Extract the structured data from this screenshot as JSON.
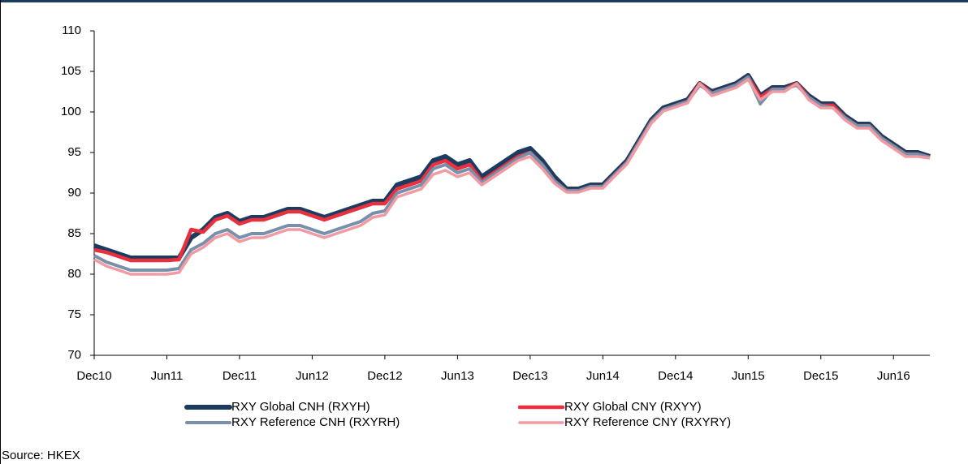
{
  "chart_data": {
    "type": "line",
    "categories": [
      "Dec10",
      null,
      null,
      null,
      null,
      null,
      "Jun11",
      null,
      null,
      null,
      null,
      null,
      "Dec11",
      null,
      null,
      null,
      null,
      null,
      "Jun12",
      null,
      null,
      null,
      null,
      null,
      "Dec12",
      null,
      null,
      null,
      null,
      null,
      "Jun13",
      null,
      null,
      null,
      null,
      null,
      "Dec13",
      null,
      null,
      null,
      null,
      null,
      "Jun14",
      null,
      null,
      null,
      null,
      null,
      "Dec14",
      null,
      null,
      null,
      null,
      null,
      "Jun15",
      null,
      null,
      null,
      null,
      null,
      "Dec15",
      null,
      null,
      null,
      null,
      null,
      "Jun16",
      null,
      null,
      null
    ],
    "series": [
      {
        "name": "RXY Global CNH (RXYH)",
        "color": "#1b3b5f",
        "values": [
          83.5,
          83,
          82.5,
          82,
          82,
          82,
          82,
          82,
          84.5,
          85.5,
          87,
          87.5,
          86.5,
          87,
          87,
          87.5,
          88,
          88,
          87.5,
          87,
          87.5,
          88,
          88.5,
          89,
          89,
          91,
          91.5,
          92,
          94,
          94.5,
          93.5,
          94,
          92,
          93,
          94,
          95,
          95.5,
          94,
          92,
          90.5,
          90.5,
          91,
          91,
          92.5,
          94,
          96.5,
          99,
          100.5,
          101,
          101.5,
          103.5,
          102.5,
          103,
          103.5,
          104.5,
          102,
          103,
          103,
          103.5,
          102,
          101,
          101,
          99.5,
          98.5,
          98.5,
          97,
          96,
          95,
          95,
          94.5
        ]
      },
      {
        "name": "RXY Global CNY (RXYY)",
        "color": "#e8303e",
        "values": [
          83,
          82.7,
          82.2,
          81.7,
          81.7,
          81.7,
          81.7,
          81.8,
          85.5,
          85.2,
          86.7,
          87.2,
          86.2,
          86.7,
          86.7,
          87.2,
          87.7,
          87.7,
          87.2,
          86.7,
          87.2,
          87.7,
          88.2,
          88.7,
          88.7,
          90.5,
          91,
          91.5,
          93.5,
          94,
          93,
          93.5,
          91.5,
          92.5,
          93.5,
          94.5,
          95,
          93.5,
          91.5,
          90.3,
          90.3,
          90.8,
          90.8,
          92.3,
          93.8,
          96.3,
          98.8,
          100.3,
          100.8,
          101.3,
          103.5,
          102.3,
          102.8,
          103.3,
          104.3,
          101.8,
          102.8,
          102.8,
          103.5,
          101.8,
          100.8,
          100.8,
          99.3,
          98.3,
          98.3,
          96.8,
          95.8,
          94.8,
          94.8,
          94.4
        ]
      },
      {
        "name": "RXY Reference CNH (RXYRH)",
        "color": "#7890aa",
        "values": [
          82.3,
          81.5,
          81,
          80.5,
          80.5,
          80.5,
          80.5,
          80.7,
          83,
          83.8,
          85,
          85.5,
          84.5,
          85,
          85,
          85.5,
          86,
          86,
          85.5,
          85,
          85.5,
          86,
          86.5,
          87.5,
          87.8,
          90,
          90.5,
          91,
          93,
          93.5,
          92.5,
          93,
          91.3,
          92.3,
          93.3,
          94.3,
          95,
          93.5,
          91.5,
          90.3,
          90.3,
          90.8,
          90.8,
          92.3,
          93.8,
          96.3,
          98.8,
          100.3,
          100.8,
          101.3,
          103.3,
          102.3,
          102.8,
          103.3,
          104.3,
          101,
          102.8,
          102.8,
          103.3,
          101.8,
          100.8,
          100.5,
          99.3,
          98.3,
          98.3,
          96.8,
          95.8,
          94.8,
          94.8,
          94.4
        ]
      },
      {
        "name": "RXY Reference CNY (RXYRY)",
        "color": "#f29aa3",
        "values": [
          81.8,
          81,
          80.5,
          80,
          80,
          80,
          80,
          80.2,
          82.5,
          83.3,
          84.5,
          85,
          84,
          84.5,
          84.5,
          85,
          85.5,
          85.5,
          85,
          84.5,
          85,
          85.5,
          86,
          87,
          87.3,
          89.5,
          90,
          90.5,
          92.3,
          92.8,
          92,
          92.5,
          91,
          92,
          93,
          94,
          94.5,
          93,
          91.2,
          90.1,
          90.1,
          90.6,
          90.6,
          92.1,
          93.6,
          96.1,
          98.6,
          100.1,
          100.6,
          101.1,
          103.5,
          102,
          102.5,
          103,
          104,
          101.5,
          102.5,
          102.5,
          103.5,
          101.5,
          100.5,
          100.5,
          99,
          98,
          98,
          96.5,
          95.5,
          94.5,
          94.5,
          94.3
        ]
      }
    ],
    "ylim": [
      70,
      110
    ],
    "yticks": [
      70,
      75,
      80,
      85,
      90,
      95,
      100,
      105,
      110
    ],
    "grid": false,
    "legend": "bottom",
    "source": "Source: HKEX"
  }
}
